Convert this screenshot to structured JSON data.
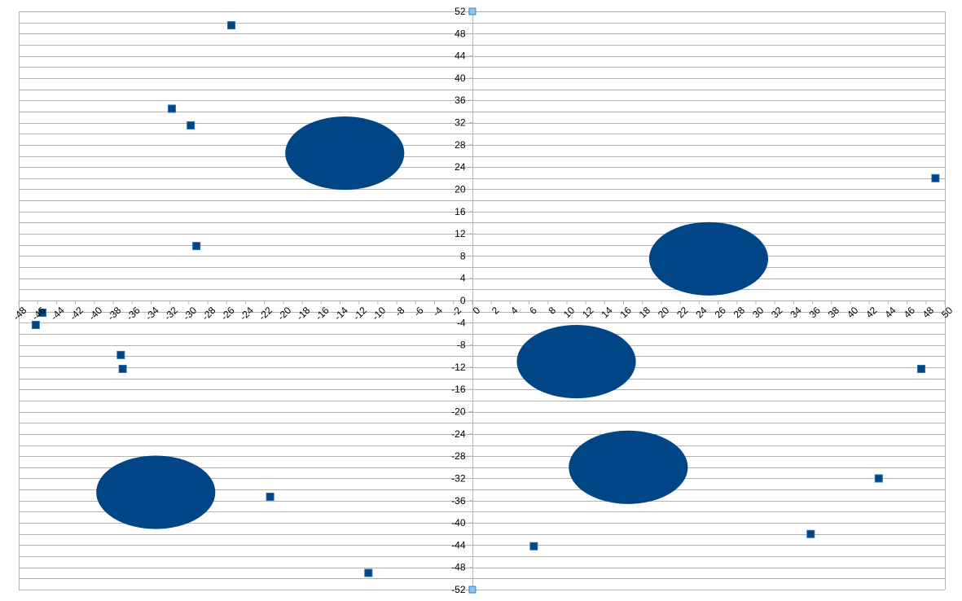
{
  "chart_data": {
    "type": "scatter",
    "title": "",
    "xlabel": "",
    "ylabel": "",
    "xlim": [
      -48,
      50
    ],
    "ylim": [
      -52,
      52
    ],
    "x_ticks": [
      -48,
      -46,
      -44,
      -42,
      -40,
      -38,
      -36,
      -34,
      -32,
      -30,
      -28,
      -26,
      -24,
      -22,
      -20,
      -18,
      -16,
      -14,
      -12,
      -10,
      -8,
      -6,
      -4,
      -2,
      0,
      2,
      4,
      6,
      8,
      10,
      12,
      14,
      16,
      18,
      20,
      22,
      24,
      26,
      28,
      30,
      32,
      34,
      36,
      38,
      40,
      42,
      44,
      46,
      48,
      50
    ],
    "y_ticks": [
      52,
      48,
      44,
      40,
      36,
      32,
      28,
      24,
      20,
      16,
      12,
      8,
      4,
      0,
      -4,
      -8,
      -12,
      -16,
      -20,
      -24,
      -28,
      -32,
      -36,
      -40,
      -44,
      -48,
      -52
    ],
    "grid": {
      "horizontal": true,
      "vertical": false,
      "minor_step": 2
    },
    "legend": "none",
    "colors": {
      "marker": "#004586",
      "marker_light": "#83caff",
      "grid": "#b3b3b3",
      "axis": "#b3b3b3"
    },
    "series": [
      {
        "marker": "square",
        "points": [
          [
            -25.5,
            49.5
          ],
          [
            -31.8,
            34.5
          ],
          [
            -29.8,
            31.5
          ],
          [
            -29.2,
            9.8
          ],
          [
            -45.5,
            -2.2
          ],
          [
            -46.2,
            -4.4
          ],
          [
            -37.2,
            -9.8
          ],
          [
            -37.0,
            -12.3
          ],
          [
            -21.4,
            -35.3
          ],
          [
            -11.0,
            -49.0
          ],
          [
            6.5,
            -44.2
          ],
          [
            35.8,
            -42.0
          ],
          [
            43.0,
            -32.0
          ],
          [
            47.5,
            -12.3
          ],
          [
            49.0,
            22.0
          ]
        ]
      }
    ],
    "clusters": [
      {
        "cx": -13.5,
        "cy": 26.5,
        "rx": 6.3,
        "ry": 6.6
      },
      {
        "cx": 25.0,
        "cy": 7.5,
        "rx": 6.3,
        "ry": 6.6
      },
      {
        "cx": 11.0,
        "cy": -11.0,
        "rx": 6.3,
        "ry": 6.6
      },
      {
        "cx": 16.5,
        "cy": -30.0,
        "rx": 6.3,
        "ry": 6.6
      },
      {
        "cx": -33.5,
        "cy": -34.5,
        "rx": 6.3,
        "ry": 6.6
      }
    ],
    "axis_end_markers": [
      [
        0,
        52
      ],
      [
        0,
        -52
      ]
    ]
  }
}
